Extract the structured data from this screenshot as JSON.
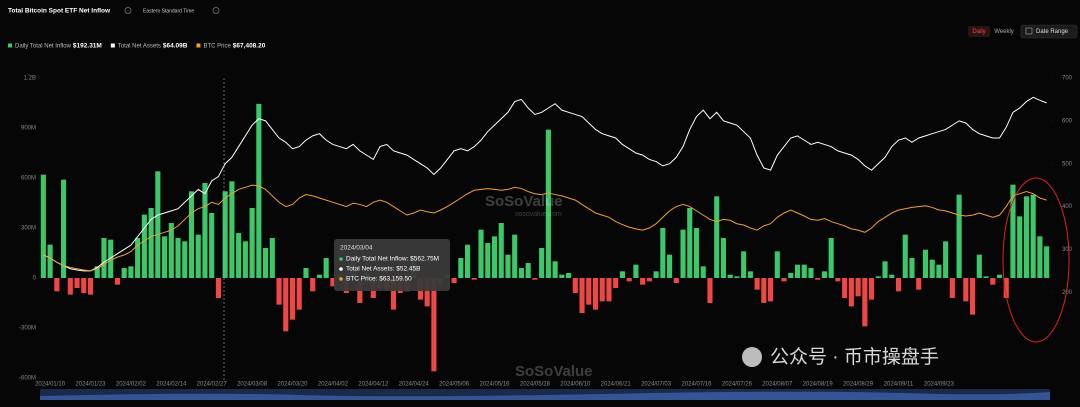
{
  "header": {
    "title": "Total Bitcoin Spot ETF Net Inflow",
    "timezone": "Eastern Standard Time",
    "buttons": [
      "Daily",
      "Weekly",
      "Date Range"
    ]
  },
  "tooltip": {
    "date": "2024/03/04",
    "lines": [
      "Daily Total Net Inflow: $562.75M",
      "Total Net Assets: $52.45B",
      "BTC Price: $63,159.50"
    ]
  },
  "watermarks": [
    "SoSoValue",
    "sosovalue.com",
    "SoSoValue",
    "公众号 · 币市操盘手"
  ],
  "chart_data": {
    "type": "bar",
    "categories": [
      null,
      "2024/01/10",
      null,
      null,
      null,
      null,
      null,
      "2024/01/23",
      null,
      null,
      null,
      null,
      null,
      "2024/02/02",
      null,
      null,
      null,
      null,
      null,
      "2024/02/14",
      null,
      null,
      null,
      null,
      null,
      "2024/02/27",
      null,
      null,
      null,
      null,
      null,
      "2024/03/08",
      null,
      null,
      null,
      null,
      null,
      "2024/03/20",
      null,
      null,
      null,
      null,
      null,
      "2024/04/02",
      null,
      null,
      null,
      null,
      null,
      "2024/04/12",
      null,
      null,
      null,
      null,
      null,
      "2024/04/24",
      null,
      null,
      null,
      null,
      null,
      "2024/05/06",
      null,
      null,
      null,
      null,
      null,
      "2024/05/16",
      null,
      null,
      null,
      null,
      null,
      "2024/05/28",
      null,
      null,
      null,
      null,
      null,
      "2024/06/10",
      null,
      null,
      null,
      null,
      null,
      "2024/06/21",
      null,
      null,
      null,
      null,
      null,
      "2024/07/03",
      null,
      null,
      null,
      null,
      null,
      "2024/07/16",
      null,
      null,
      null,
      null,
      null,
      "2024/07/26",
      null,
      null,
      null,
      null,
      null,
      "2024/08/07",
      null,
      null,
      null,
      null,
      null,
      "2024/08/19",
      null,
      null,
      null,
      null,
      null,
      "2024/08/29",
      null,
      null,
      null,
      null,
      null,
      "2024/09/11",
      null,
      null,
      null,
      null,
      null,
      "2024/09/23",
      null,
      null,
      null,
      null,
      null,
      null,
      null,
      null,
      null,
      null,
      null,
      null,
      null,
      null,
      null,
      null
    ],
    "series": [
      {
        "name": "Daily Total Net Inflow",
        "latest": "$192.31M",
        "type": "bar",
        "color": "#3cc76a",
        "negative_color": "#ef4646",
        "values": [
          620,
          200,
          -80,
          590,
          -100,
          -60,
          -90,
          -100,
          70,
          240,
          230,
          -40,
          60,
          70,
          240,
          380,
          420,
          640,
          250,
          330,
          240,
          220,
          520,
          260,
          570,
          390,
          -120,
          520,
          580,
          270,
          220,
          420,
          1045,
          180,
          240,
          -160,
          -320,
          -250,
          -190,
          60,
          -80,
          20,
          120,
          -50,
          20,
          -90,
          110,
          -150,
          30,
          -120,
          -60,
          -70,
          -190,
          -90,
          -80,
          110,
          -130,
          -170,
          -560,
          -40,
          20,
          -30,
          120,
          200,
          -10,
          290,
          210,
          250,
          330,
          140,
          260,
          60,
          90,
          -10,
          180,
          890,
          100,
          20,
          30,
          -90,
          -210,
          -160,
          -190,
          -140,
          -140,
          -60,
          40,
          -20,
          80,
          -40,
          -20,
          40,
          300,
          140,
          -30,
          290,
          420,
          300,
          70,
          -150,
          490,
          240,
          20,
          10,
          160,
          40,
          -70,
          -150,
          -140,
          160,
          -20,
          30,
          80,
          80,
          60,
          -10,
          40,
          240,
          -20,
          -120,
          -170,
          -110,
          -290,
          -130,
          10,
          100,
          20,
          -80,
          260,
          120,
          -70,
          170,
          110,
          80,
          220,
          -120,
          500,
          -140,
          -220,
          140,
          10,
          -40,
          20,
          -120,
          560,
          370,
          490,
          500,
          250,
          190
        ]
      },
      {
        "name": "Total Net Assets",
        "latest": "$64.09B",
        "type": "line",
        "axis": "y2",
        "color": "#ffffff",
        "values": [
          287,
          280,
          270,
          262,
          255,
          252,
          250,
          250,
          258,
          270,
          280,
          290,
          300,
          310,
          330,
          350,
          370,
          380,
          385,
          390,
          395,
          410,
          425,
          440,
          430,
          460,
          470,
          500,
          515,
          540,
          565,
          590,
          605,
          600,
          580,
          560,
          550,
          535,
          540,
          555,
          565,
          570,
          555,
          545,
          540,
          535,
          545,
          530,
          520,
          510,
          540,
          545,
          530,
          525,
          520,
          510,
          500,
          490,
          475,
          490,
          510,
          530,
          535,
          530,
          540,
          555,
          575,
          590,
          605,
          620,
          645,
          650,
          630,
          615,
          620,
          630,
          640,
          625,
          620,
          615,
          610,
          595,
          580,
          570,
          565,
          560,
          545,
          535,
          525,
          520,
          510,
          505,
          495,
          500,
          515,
          540,
          580,
          610,
          625,
          605,
          620,
          600,
          595,
          590,
          575,
          560,
          520,
          490,
          485,
          520,
          540,
          560,
          565,
          555,
          545,
          550,
          545,
          540,
          530,
          525,
          520,
          510,
          495,
          485,
          500,
          515,
          540,
          555,
          560,
          550,
          560,
          565,
          570,
          575,
          580,
          590,
          600,
          595,
          580,
          570,
          565,
          560,
          560,
          585,
          620,
          630,
          645,
          655,
          648,
          642
        ]
      },
      {
        "name": "BTC Price",
        "latest": "$67,408.20",
        "type": "line",
        "axis": "y2",
        "color": "#f0a030",
        "values": [
          287,
          280,
          270,
          262,
          258,
          255,
          252,
          250,
          255,
          265,
          275,
          282,
          287,
          295,
          310,
          320,
          330,
          335,
          340,
          345,
          355,
          370,
          385,
          395,
          400,
          410,
          405,
          420,
          430,
          440,
          445,
          450,
          448,
          440,
          425,
          410,
          400,
          405,
          420,
          428,
          425,
          420,
          415,
          410,
          405,
          400,
          408,
          405,
          400,
          410,
          415,
          410,
          400,
          390,
          380,
          385,
          392,
          388,
          385,
          392,
          400,
          410,
          420,
          430,
          438,
          440,
          442,
          440,
          438,
          440,
          445,
          442,
          435,
          430,
          428,
          432,
          428,
          425,
          420,
          415,
          405,
          395,
          385,
          380,
          375,
          365,
          358,
          352,
          348,
          345,
          350,
          360,
          375,
          390,
          400,
          405,
          400,
          390,
          380,
          370,
          365,
          370,
          368,
          360,
          357,
          350,
          345,
          355,
          360,
          375,
          385,
          392,
          385,
          378,
          370,
          368,
          372,
          365,
          360,
          355,
          348,
          345,
          340,
          350,
          365,
          375,
          385,
          392,
          395,
          398,
          400,
          402,
          398,
          392,
          390,
          385,
          380,
          378,
          380,
          385,
          380,
          375,
          380,
          400,
          425,
          430,
          435,
          430,
          420,
          415
        ]
      }
    ],
    "ylim": [
      -600,
      1200
    ],
    "yticks": [
      {
        "value": -600,
        "label": "-600M"
      },
      {
        "value": -300,
        "label": "-300M"
      },
      0,
      {
        "value": 300,
        "label": "300M"
      },
      {
        "value": 600,
        "label": "600M"
      },
      {
        "value": 900,
        "label": "900M"
      },
      {
        "value": 1200,
        "label": "1.2B"
      }
    ],
    "y2lim": [
      0,
      700
    ],
    "y2ticks": [
      200,
      300,
      400,
      500,
      600,
      700
    ],
    "grid": false
  }
}
